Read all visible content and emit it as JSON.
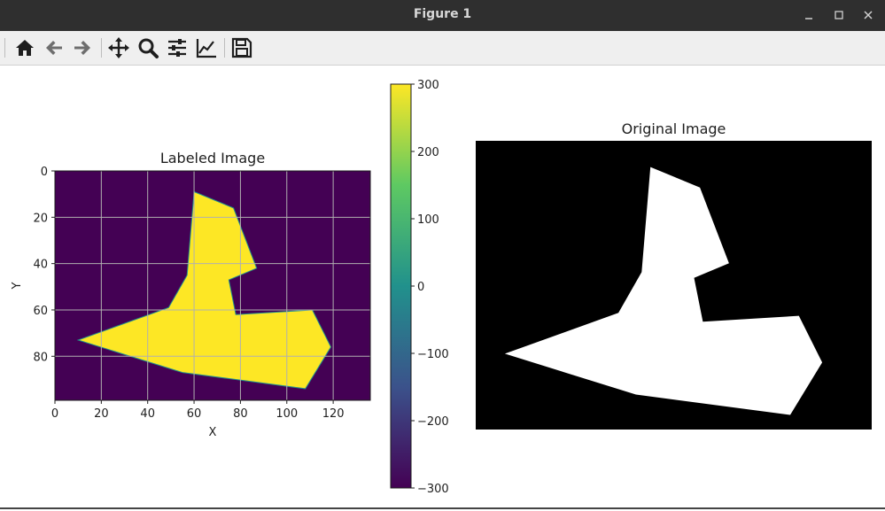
{
  "window": {
    "title": "Figure 1",
    "minimize_icon": "minimize-icon",
    "maximize_icon": "maximize-icon",
    "close_icon": "close-icon"
  },
  "toolbar": {
    "buttons": [
      {
        "icon": "home-icon",
        "tooltip": "Reset original view"
      },
      {
        "icon": "back-arrow-icon",
        "tooltip": "Back"
      },
      {
        "icon": "forward-arrow-icon",
        "tooltip": "Forward"
      },
      {
        "icon": "pan-icon",
        "tooltip": "Pan"
      },
      {
        "icon": "zoom-icon",
        "tooltip": "Zoom"
      },
      {
        "icon": "configure-subplots-icon",
        "tooltip": "Configure subplots"
      },
      {
        "icon": "edit-axis-icon",
        "tooltip": "Edit axis"
      },
      {
        "icon": "save-icon",
        "tooltip": "Save"
      }
    ]
  },
  "chart_data": [
    {
      "type": "heatmap",
      "title": "Labeled Image",
      "xlabel": "X",
      "ylabel": "Y",
      "xlim": [
        0,
        136
      ],
      "ylim": [
        99,
        0
      ],
      "xticks": [
        "0",
        "20",
        "40",
        "60",
        "80",
        "100",
        "120"
      ],
      "yticks": [
        "0",
        "20",
        "40",
        "60",
        "80"
      ],
      "grid": true,
      "colormap": "viridis",
      "background_color": "#440154",
      "shape_color": "#fde725",
      "shape_polygon": [
        [
          60,
          9
        ],
        [
          77,
          16
        ],
        [
          87,
          42
        ],
        [
          75,
          47
        ],
        [
          78,
          62
        ],
        [
          111,
          60
        ],
        [
          119,
          76
        ],
        [
          108,
          94
        ],
        [
          55,
          87
        ],
        [
          10,
          73
        ],
        [
          49,
          59
        ],
        [
          57,
          45
        ]
      ]
    },
    {
      "type": "colorbar",
      "range": [
        -300,
        300
      ],
      "ticks": [
        "300",
        "200",
        "100",
        "0",
        "−100",
        "−200",
        "−300"
      ],
      "colors": [
        "#440154",
        "#3b528b",
        "#21918c",
        "#5ec962",
        "#fde725"
      ]
    },
    {
      "type": "image",
      "title": "Original Image",
      "background_color": "#000000",
      "shape_color": "#ffffff"
    }
  ]
}
